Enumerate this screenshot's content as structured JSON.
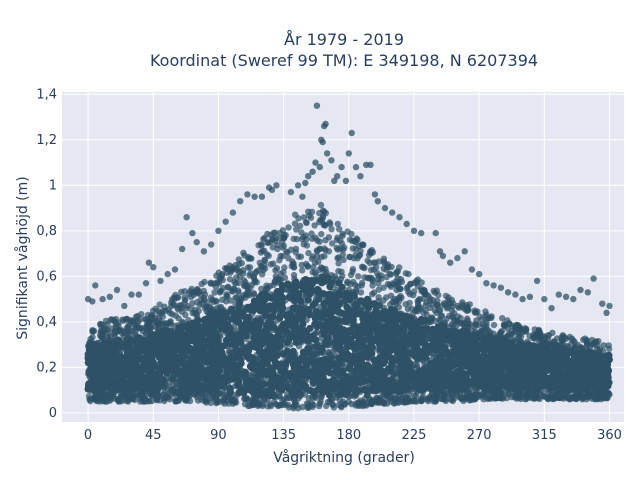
{
  "chart_data": {
    "type": "scatter",
    "title_lines": [
      "År 1979 - 2019",
      "Koordinat (Sweref 99 TM): E 349198, N 6207394"
    ],
    "xlabel": "Vågriktning (grader)",
    "ylabel": "Signifikant våghöjd (m)",
    "xlim": [
      -18,
      370
    ],
    "ylim": [
      -0.04,
      1.41
    ],
    "x_ticks": [
      0,
      45,
      90,
      135,
      180,
      225,
      270,
      315,
      360
    ],
    "x_tick_labels": [
      "0",
      "45",
      "90",
      "135",
      "180",
      "225",
      "270",
      "315",
      "360"
    ],
    "y_ticks": [
      0,
      0.2,
      0.4,
      0.6,
      0.8,
      1.0,
      1.2,
      1.4
    ],
    "y_tick_labels": [
      "0",
      "0,2",
      "0,4",
      "0,6",
      "0,8",
      "1",
      "1,2",
      "1,4"
    ],
    "grid": true,
    "marker_color": "#2f5166",
    "plot_background": "#e5e8f2",
    "density_envelope": [
      [
        0,
        0.05,
        0.38
      ],
      [
        10,
        0.05,
        0.4
      ],
      [
        20,
        0.05,
        0.42
      ],
      [
        30,
        0.05,
        0.43
      ],
      [
        45,
        0.05,
        0.46
      ],
      [
        60,
        0.05,
        0.52
      ],
      [
        75,
        0.05,
        0.56
      ],
      [
        90,
        0.04,
        0.62
      ],
      [
        100,
        0.04,
        0.66
      ],
      [
        110,
        0.03,
        0.72
      ],
      [
        120,
        0.03,
        0.77
      ],
      [
        135,
        0.02,
        0.84
      ],
      [
        150,
        0.02,
        0.9
      ],
      [
        160,
        0.02,
        0.92
      ],
      [
        170,
        0.02,
        0.88
      ],
      [
        180,
        0.03,
        0.8
      ],
      [
        190,
        0.03,
        0.74
      ],
      [
        200,
        0.04,
        0.7
      ],
      [
        210,
        0.04,
        0.66
      ],
      [
        225,
        0.05,
        0.6
      ],
      [
        240,
        0.05,
        0.54
      ],
      [
        255,
        0.05,
        0.5
      ],
      [
        270,
        0.06,
        0.46
      ],
      [
        285,
        0.06,
        0.42
      ],
      [
        300,
        0.06,
        0.38
      ],
      [
        315,
        0.06,
        0.36
      ],
      [
        330,
        0.06,
        0.34
      ],
      [
        345,
        0.06,
        0.33
      ],
      [
        360,
        0.06,
        0.3
      ]
    ],
    "outliers": [
      [
        0,
        0.5
      ],
      [
        3,
        0.49
      ],
      [
        5,
        0.56
      ],
      [
        10,
        0.5
      ],
      [
        15,
        0.51
      ],
      [
        20,
        0.54
      ],
      [
        25,
        0.47
      ],
      [
        30,
        0.52
      ],
      [
        35,
        0.52
      ],
      [
        40,
        0.57
      ],
      [
        42,
        0.66
      ],
      [
        45,
        0.64
      ],
      [
        50,
        0.58
      ],
      [
        55,
        0.61
      ],
      [
        60,
        0.63
      ],
      [
        65,
        0.72
      ],
      [
        68,
        0.86
      ],
      [
        72,
        0.79
      ],
      [
        75,
        0.75
      ],
      [
        80,
        0.71
      ],
      [
        85,
        0.74
      ],
      [
        90,
        0.8
      ],
      [
        95,
        0.84
      ],
      [
        100,
        0.88
      ],
      [
        105,
        0.93
      ],
      [
        110,
        0.96
      ],
      [
        115,
        0.95
      ],
      [
        120,
        0.95
      ],
      [
        125,
        0.99
      ],
      [
        127,
        0.98
      ],
      [
        130,
        1.0
      ],
      [
        140,
        0.97
      ],
      [
        145,
        1.0
      ],
      [
        148,
        0.95
      ],
      [
        150,
        1.01
      ],
      [
        152,
        1.04
      ],
      [
        155,
        1.06
      ],
      [
        157,
        1.1
      ],
      [
        160,
        1.08
      ],
      [
        161,
        1.2
      ],
      [
        162,
        1.19
      ],
      [
        163,
        1.26
      ],
      [
        164,
        1.27
      ],
      [
        158,
        1.35
      ],
      [
        165,
        1.14
      ],
      [
        168,
        1.11
      ],
      [
        170,
        1.02
      ],
      [
        172,
        1.04
      ],
      [
        175,
        1.08
      ],
      [
        178,
        1.02
      ],
      [
        180,
        1.14
      ],
      [
        182,
        1.23
      ],
      [
        185,
        1.08
      ],
      [
        188,
        1.04
      ],
      [
        192,
        1.09
      ],
      [
        195,
        1.09
      ],
      [
        198,
        0.96
      ],
      [
        200,
        0.93
      ],
      [
        205,
        0.9
      ],
      [
        210,
        0.88
      ],
      [
        215,
        0.86
      ],
      [
        220,
        0.83
      ],
      [
        225,
        0.8
      ],
      [
        230,
        0.79
      ],
      [
        240,
        0.79
      ],
      [
        243,
        0.71
      ],
      [
        245,
        0.69
      ],
      [
        250,
        0.66
      ],
      [
        255,
        0.68
      ],
      [
        260,
        0.71
      ],
      [
        265,
        0.63
      ],
      [
        270,
        0.61
      ],
      [
        275,
        0.57
      ],
      [
        280,
        0.56
      ],
      [
        285,
        0.55
      ],
      [
        290,
        0.53
      ],
      [
        295,
        0.52
      ],
      [
        300,
        0.5
      ],
      [
        305,
        0.51
      ],
      [
        310,
        0.58
      ],
      [
        315,
        0.5
      ],
      [
        320,
        0.46
      ],
      [
        325,
        0.52
      ],
      [
        330,
        0.51
      ],
      [
        335,
        0.5
      ],
      [
        340,
        0.54
      ],
      [
        345,
        0.53
      ],
      [
        349,
        0.59
      ],
      [
        355,
        0.48
      ],
      [
        358,
        0.44
      ],
      [
        360,
        0.47
      ]
    ]
  }
}
